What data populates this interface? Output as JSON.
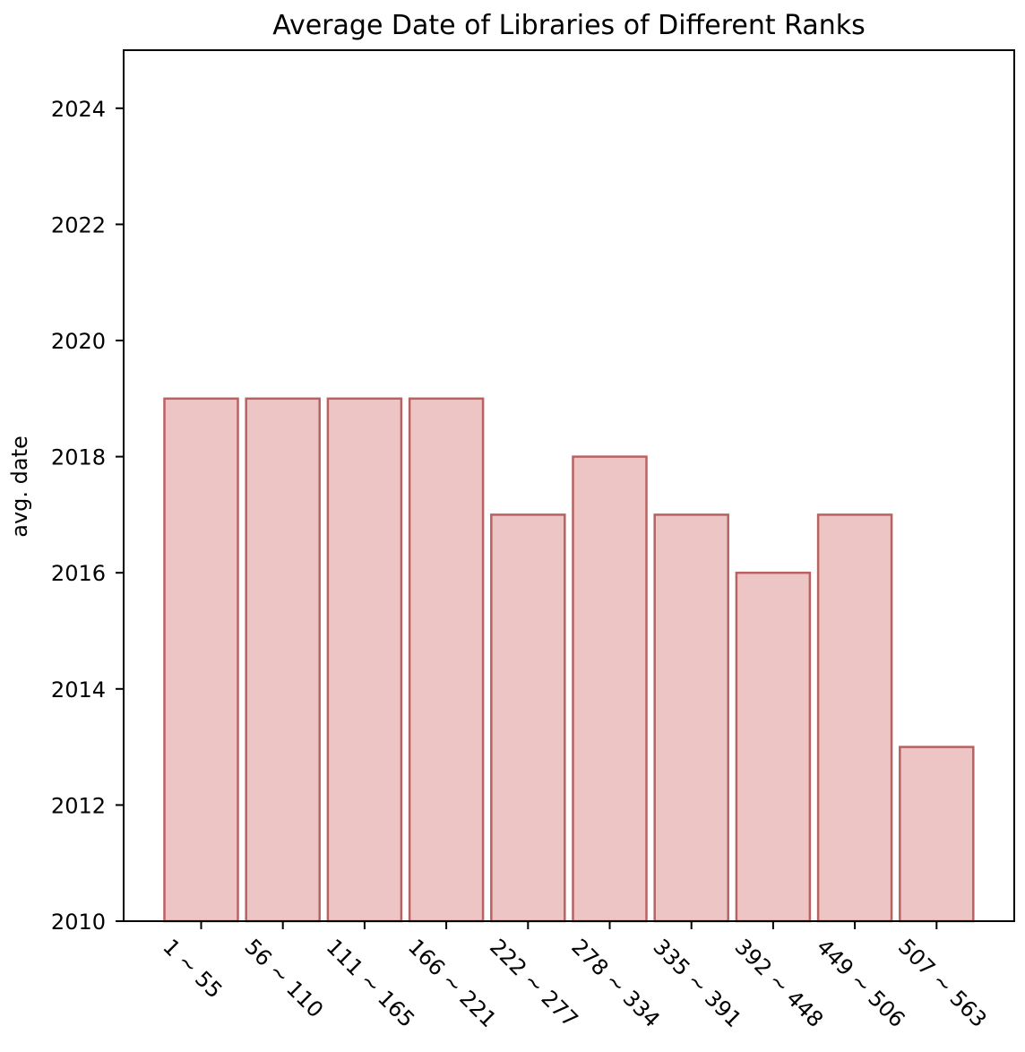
{
  "chart_data": {
    "type": "bar",
    "title": "Average Date of Libraries of Different Ranks",
    "xlabel": "",
    "ylabel": "avg. date",
    "categories": [
      "1 ~ 55",
      "56 ~ 110",
      "111 ~ 165",
      "166 ~ 221",
      "222 ~ 277",
      "278 ~ 334",
      "335 ~ 391",
      "392 ~ 448",
      "449 ~ 506",
      "507 ~ 563"
    ],
    "values": [
      2019,
      2019,
      2019,
      2019,
      2017,
      2018,
      2017,
      2016,
      2017,
      2013
    ],
    "ylim": [
      2010,
      2025
    ],
    "yticks": [
      2010,
      2012,
      2014,
      2016,
      2018,
      2020,
      2022,
      2024
    ],
    "grid": false,
    "bar_fill": "#eec5c5",
    "bar_edge": "#b86262"
  }
}
